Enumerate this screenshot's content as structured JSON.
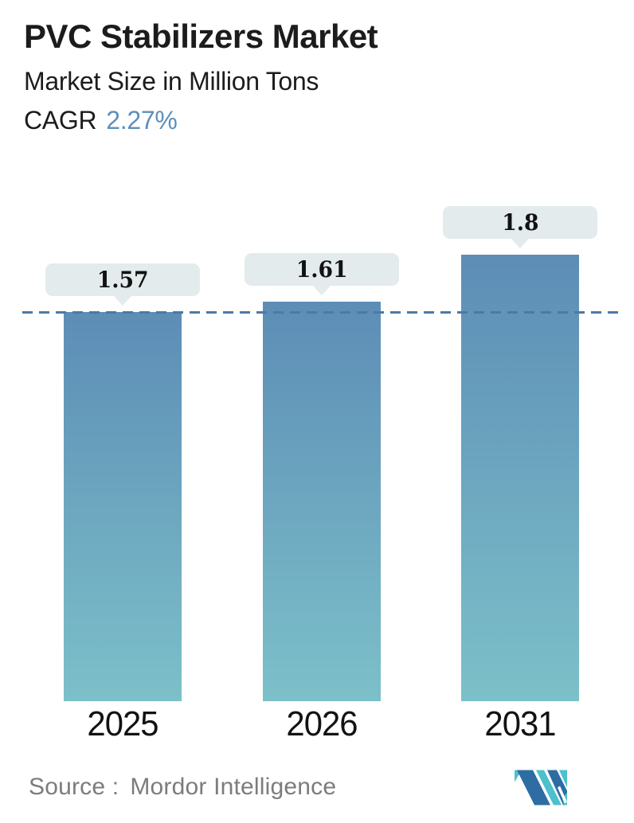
{
  "header": {
    "title": "PVC Stabilizers Market",
    "subtitle": "Market Size in Million Tons",
    "cagr_label": "CAGR",
    "cagr_value": "2.27%"
  },
  "chart_data": {
    "type": "bar",
    "categories": [
      "2025",
      "2026",
      "2031"
    ],
    "values": [
      1.57,
      1.61,
      1.8
    ],
    "data_labels": [
      "1.57",
      "1.61",
      "1.8"
    ],
    "title": "PVC Stabilizers Market",
    "subtitle": "Market Size in Million Tons",
    "ylabel": "Market Size (Million Tons)",
    "xlabel": "",
    "unit": "Million Tons",
    "cagr_percent": 2.27,
    "baseline_value": 1.57,
    "ylim": [
      0,
      2.2
    ],
    "grid": false,
    "legend": false,
    "colors": {
      "bar_gradient_top": "#5d8db6",
      "bar_gradient_bottom": "#7cc0c9",
      "callout_bg": "#e3ebed",
      "dashline": "#4a7aa8"
    }
  },
  "footer": {
    "source_label": "Source :",
    "source_name": "Mordor Intelligence"
  },
  "logo": {
    "name": "mordor-intelligence-logo",
    "dark_blue": "#2d6da3",
    "teal": "#4cc0cd"
  },
  "colors": {
    "title_text": "#1c1c1c",
    "cagr_value": "#5d8fbb",
    "source_text": "#7c7c7c"
  }
}
